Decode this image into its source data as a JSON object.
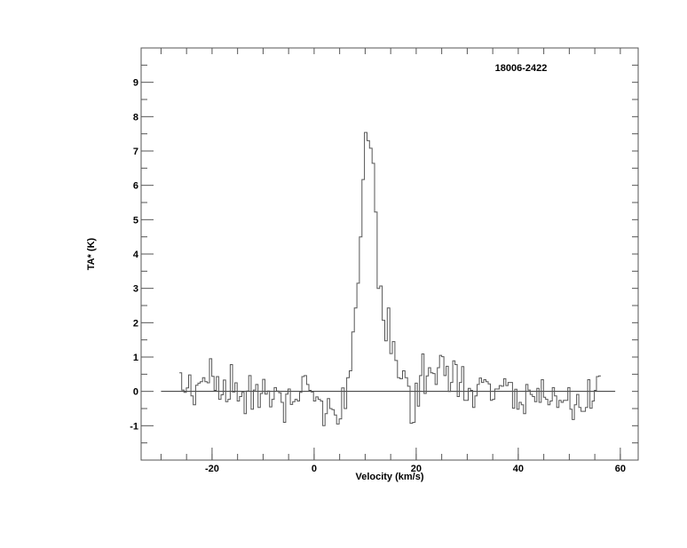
{
  "chart_data": {
    "type": "line",
    "style": "histogram-step",
    "title": "18006-2422",
    "xlabel": "Velocity (km/s)",
    "ylabel": "TA* (K)",
    "xlim": [
      -33.9,
      63.5
    ],
    "ylim": [
      -2.0,
      10.0
    ],
    "xticks": [
      -20,
      0,
      20,
      40,
      60
    ],
    "yticks": [
      -1,
      0,
      1,
      2,
      3,
      4,
      5,
      6,
      7,
      8,
      9
    ],
    "grid": false,
    "line_color": "#555555",
    "baseline": {
      "y": 0,
      "x_range": [
        -30,
        59
      ]
    },
    "segments": [
      {
        "x_start": -26.4,
        "x_end": 4.4,
        "values": [
          0.54,
          0.04,
          -0.03,
          0.1,
          0.48,
          -0.13,
          -0.39,
          0.18,
          0.24,
          0.28,
          0.4,
          0.28,
          0.25,
          0.95,
          0.44,
          0.03,
          0.43,
          -0.23,
          -0.1,
          0.33,
          -0.3,
          -0.23,
          0.78,
          -0.02,
          0.25,
          -0.28,
          -0.15,
          -0.03,
          -0.65,
          0.01,
          0.46,
          -0.52,
          0.04,
          0.2,
          -0.47,
          -0.06,
          0.35,
          -0.08,
          0.01,
          -0.45,
          -0.23,
          0.11,
          0.01,
          -0.04,
          -0.32,
          -0.9,
          -0.08,
          0.07,
          -0.38,
          -0.3,
          -0.23,
          -0.28,
          -0.03,
          0.43,
          0.46,
          0.2,
          0.03,
          -0.02,
          -0.28,
          -0.16,
          -0.23,
          -0.28,
          -1.0,
          -0.65,
          -0.21,
          -0.5,
          -0.53,
          -0.69
        ]
      },
      {
        "x_start": 4.4,
        "x_end": 19.8,
        "values": [
          -0.95,
          -0.8,
          0.1,
          -0.5,
          0.4,
          0.6,
          1.73,
          2.43,
          3.15,
          4.5,
          6.17,
          7.54,
          7.3,
          7.08,
          6.64,
          5.22,
          3.0,
          3.07,
          2.07,
          1.47,
          2.43,
          1.1,
          1.45,
          0.9,
          0.4,
          0.37,
          0.6,
          0.4,
          0.15,
          -0.93,
          -0.9
        ]
      },
      {
        "x_start": 19.8,
        "x_end": 56.2,
        "values": [
          0.24,
          -0.43,
          0.46,
          1.09,
          -0.06,
          0.45,
          0.69,
          0.54,
          0.52,
          0.2,
          0.69,
          1.05,
          1.01,
          0.46,
          0.73,
          0.0,
          0.26,
          0.89,
          0.78,
          -0.15,
          0.26,
          0.72,
          -0.26,
          -0.26,
          0.09,
          0.03,
          -0.47,
          -0.13,
          0.2,
          0.39,
          0.26,
          0.34,
          0.28,
          0.22,
          -0.26,
          -0.23,
          0.07,
          0.07,
          0.17,
          0.15,
          0.37,
          0.17,
          0.26,
          0.26,
          -0.49,
          0.06,
          -0.52,
          -0.32,
          -0.39,
          -0.65,
          0.2,
          0.04,
          -0.09,
          -0.15,
          -0.3,
          0.09,
          -0.32,
          0.34,
          -0.17,
          -0.23,
          -0.39,
          -0.28,
          0.11,
          -0.13,
          -0.47,
          -0.26,
          -0.32,
          -0.26,
          -0.26,
          0.11,
          -0.52,
          -0.82,
          -0.39,
          -0.09,
          -0.47,
          -0.58,
          -0.58,
          -0.47,
          0.34,
          -0.49,
          -0.28,
          0.03,
          0.43,
          0.45
        ]
      }
    ]
  }
}
